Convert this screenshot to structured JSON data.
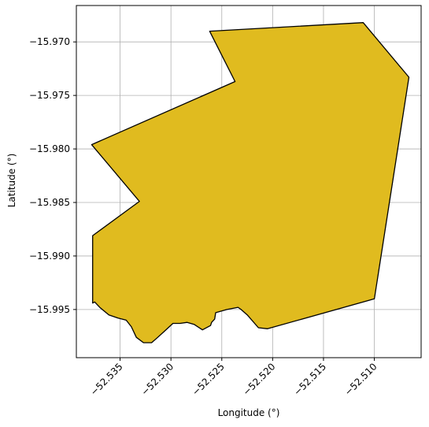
{
  "chart_data": {
    "type": "map",
    "xlabel": "Longitude (°)",
    "ylabel": "Latitude (°)",
    "xlim": [
      -52.5393,
      -52.5054
    ],
    "ylim": [
      -15.9995,
      -15.9666
    ],
    "grid": true,
    "xticks": [
      -52.535,
      -52.53,
      -52.525,
      -52.52,
      -52.515,
      -52.51
    ],
    "xtick_labels": [
      "−52.535",
      "−52.530",
      "−52.525",
      "−52.520",
      "−52.515",
      "−52.510"
    ],
    "yticks": [
      -15.97,
      -15.975,
      -15.98,
      -15.985,
      -15.99,
      -15.995
    ],
    "ytick_labels": [
      "−15.970",
      "−15.975",
      "−15.980",
      "−15.985",
      "−15.990",
      "−15.995"
    ],
    "region": {
      "fill": "#e0bb1f",
      "stroke": "#000000",
      "polygon": [
        [
          -52.5262,
          -15.969
        ],
        [
          -52.5111,
          -15.9682
        ],
        [
          -52.5066,
          -15.9733
        ],
        [
          -52.51,
          -15.994
        ],
        [
          -52.5205,
          -15.9968
        ],
        [
          -52.5214,
          -15.9967
        ],
        [
          -52.5225,
          -15.9955
        ],
        [
          -52.5231,
          -15.995
        ],
        [
          -52.5234,
          -15.9948
        ],
        [
          -52.5245,
          -15.995
        ],
        [
          -52.5256,
          -15.9953
        ],
        [
          -52.5257,
          -15.9959
        ],
        [
          -52.526,
          -15.9962
        ],
        [
          -52.5261,
          -15.9965
        ],
        [
          -52.5269,
          -15.9969
        ],
        [
          -52.5277,
          -15.9964
        ],
        [
          -52.5284,
          -15.9962
        ],
        [
          -52.5291,
          -15.9963
        ],
        [
          -52.5298,
          -15.9963
        ],
        [
          -52.5306,
          -15.997
        ],
        [
          -52.5313,
          -15.9976
        ],
        [
          -52.5319,
          -15.9981
        ],
        [
          -52.5327,
          -15.9981
        ],
        [
          -52.5334,
          -15.9976
        ],
        [
          -52.5339,
          -15.9966
        ],
        [
          -52.5344,
          -15.996
        ],
        [
          -52.5352,
          -15.9958
        ],
        [
          -52.5361,
          -15.9955
        ],
        [
          -52.537,
          -15.9948
        ],
        [
          -52.5375,
          -15.9943
        ],
        [
          -52.5377,
          -15.9944
        ],
        [
          -52.5377,
          -15.9881
        ],
        [
          -52.5331,
          -15.9849
        ],
        [
          -52.5378,
          -15.9796
        ],
        [
          -52.5237,
          -15.9737
        ]
      ]
    }
  }
}
